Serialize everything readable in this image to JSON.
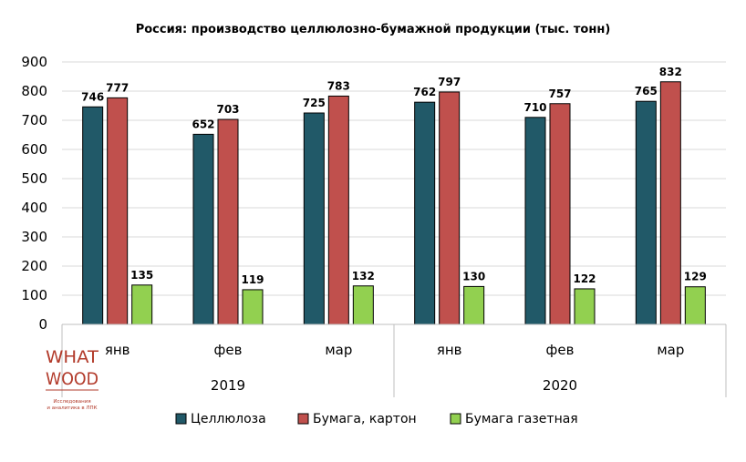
{
  "chart_data": {
    "type": "bar",
    "title": "Россия: производство целлюлозно-бумажной продукции (тыс. тонн)",
    "groups": [
      {
        "label": "2019",
        "categories": [
          "янв",
          "фев",
          "мар"
        ]
      },
      {
        "label": "2020",
        "categories": [
          "янв",
          "фев",
          "мар"
        ]
      }
    ],
    "categories": [
      "янв",
      "фев",
      "мар",
      "янв",
      "фев",
      "мар"
    ],
    "series": [
      {
        "name": "Целлюлоза",
        "color": "#215968",
        "values": [
          746,
          652,
          725,
          762,
          710,
          765
        ]
      },
      {
        "name": "Бумага, картон",
        "color": "#c0504d",
        "values": [
          777,
          703,
          783,
          797,
          757,
          832
        ]
      },
      {
        "name": "Бумага газетная",
        "color": "#92d050",
        "values": [
          135,
          119,
          132,
          130,
          122,
          129
        ]
      }
    ],
    "ylim": [
      0,
      900
    ],
    "yticks": [
      0,
      100,
      200,
      300,
      400,
      500,
      600,
      700,
      800,
      900
    ],
    "grid": true,
    "legend": "bottom"
  },
  "logo": {
    "line1": "WHAT",
    "line2": "WOOD",
    "caption1": "Исследования",
    "caption2": "и аналитика в ЛПК"
  }
}
